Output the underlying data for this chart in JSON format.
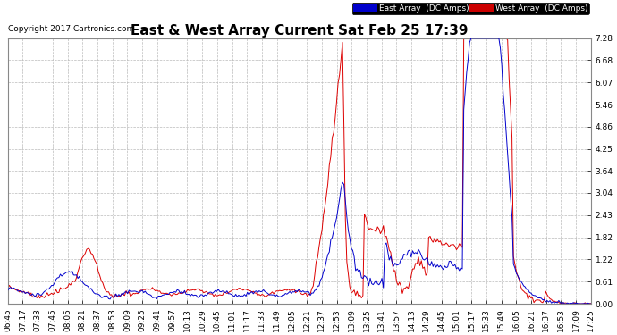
{
  "title": "East & West Array Current Sat Feb 25 17:39",
  "copyright": "Copyright 2017 Cartronics.com",
  "legend_east": "East Array  (DC Amps)",
  "legend_west": "West Array  (DC Amps)",
  "east_color": "#0000cc",
  "west_color": "#dd0000",
  "legend_east_bg": "#0000cc",
  "legend_west_bg": "#cc0000",
  "background_color": "#ffffff",
  "grid_color": "#bbbbbb",
  "ylim": [
    0.0,
    7.28
  ],
  "yticks": [
    0.0,
    0.61,
    1.22,
    1.82,
    2.43,
    3.04,
    3.64,
    4.25,
    4.86,
    5.46,
    6.07,
    6.68,
    7.28
  ],
  "title_fontsize": 11,
  "tick_fontsize": 6.5,
  "linewidth": 0.7,
  "xtick_labels": [
    "06:45",
    "07:17",
    "07:33",
    "07:45",
    "08:05",
    "08:21",
    "08:37",
    "08:53",
    "09:09",
    "09:25",
    "09:41",
    "09:57",
    "10:13",
    "10:29",
    "10:45",
    "11:01",
    "11:17",
    "11:33",
    "11:49",
    "12:05",
    "12:21",
    "12:37",
    "12:53",
    "13:09",
    "13:25",
    "13:41",
    "13:57",
    "14:13",
    "14:29",
    "14:45",
    "15:01",
    "15:17",
    "15:33",
    "15:49",
    "16:05",
    "16:21",
    "16:37",
    "16:53",
    "17:09",
    "17:25"
  ]
}
